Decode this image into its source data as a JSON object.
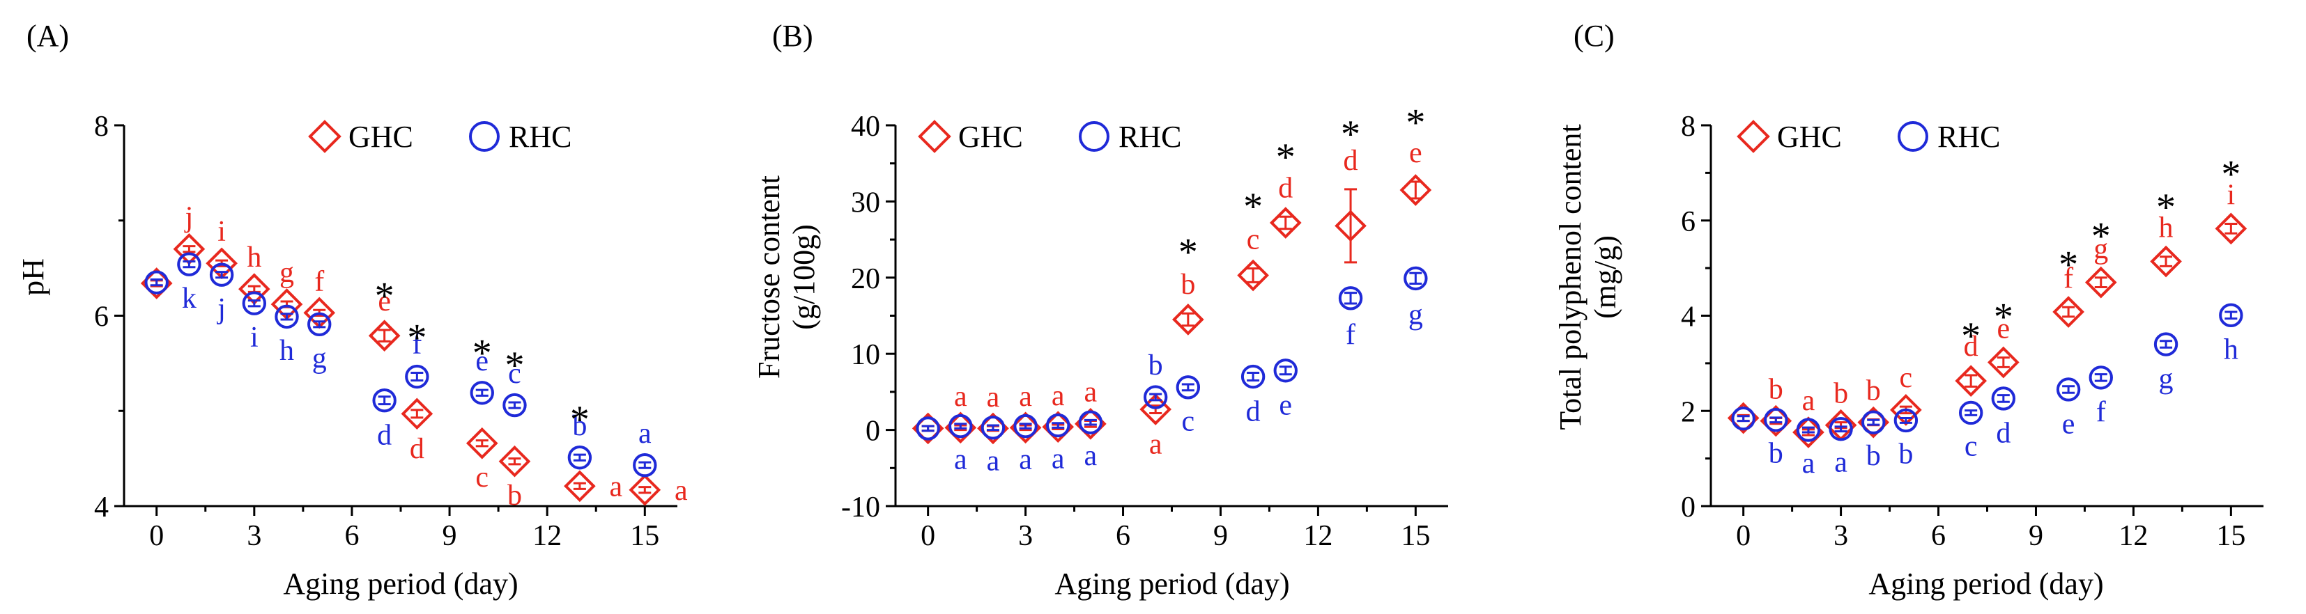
{
  "colors": {
    "ghc": "#e8281e",
    "rhc": "#1f2ad8",
    "axis": "#000000",
    "star": "#000000"
  },
  "chart_data": [
    {
      "type": "scatter",
      "panel_label": "(A)",
      "xlabel": "Aging  period (day)",
      "ylabel": [
        "pH"
      ],
      "xlim": [
        -1,
        16
      ],
      "ylim": [
        4,
        8
      ],
      "xticks": [
        0,
        3,
        6,
        9,
        12,
        15
      ],
      "yticks": [
        4,
        6,
        8
      ],
      "x_minor": true,
      "y_minor": true,
      "legend": {
        "position": "top-right",
        "entries": [
          "GHC",
          "RHC"
        ]
      },
      "series": [
        {
          "name": "GHC",
          "marker": "diamond",
          "x": [
            0,
            1,
            2,
            3,
            4,
            5,
            7,
            8,
            10,
            11,
            13,
            15
          ],
          "y": [
            6.34,
            6.7,
            6.55,
            6.28,
            6.12,
            6.03,
            5.79,
            4.97,
            4.66,
            4.47,
            4.21,
            4.17
          ],
          "err": [
            0.03,
            0.03,
            0.03,
            0.03,
            0.03,
            0.03,
            0.06,
            0.04,
            0.03,
            0.03,
            0.03,
            0.03
          ],
          "labels": [
            "",
            "j",
            "i",
            "h",
            "g",
            "f",
            "e",
            "d",
            "c",
            "b",
            "a",
            "a"
          ],
          "label_pos": [
            "",
            "above",
            "above",
            "above",
            "above",
            "above",
            "above",
            "below",
            "below",
            "below",
            "right",
            "right"
          ]
        },
        {
          "name": "RHC",
          "marker": "circle",
          "x": [
            0,
            1,
            2,
            3,
            4,
            5,
            7,
            8,
            10,
            11,
            13,
            15
          ],
          "y": [
            6.35,
            6.54,
            6.43,
            6.13,
            5.99,
            5.91,
            5.11,
            5.36,
            5.19,
            5.06,
            4.51,
            4.43
          ],
          "err": [
            0.03,
            0.03,
            0.03,
            0.03,
            0.03,
            0.03,
            0.04,
            0.04,
            0.03,
            0.03,
            0.03,
            0.03
          ],
          "labels": [
            "",
            "k",
            "j",
            "i",
            "h",
            "g",
            "d",
            "f",
            "e",
            "c",
            "b",
            "a"
          ],
          "label_pos": [
            "",
            "below",
            "below",
            "below",
            "below",
            "below",
            "below",
            "above",
            "above",
            "above",
            "above",
            "above"
          ]
        }
      ],
      "significance": [
        {
          "x": 7,
          "y": 6.22,
          "text": "*"
        },
        {
          "x": 8,
          "y": 5.78,
          "text": "*"
        },
        {
          "x": 10,
          "y": 5.62,
          "text": "*"
        },
        {
          "x": 11,
          "y": 5.49,
          "text": "*"
        },
        {
          "x": 13,
          "y": 4.92,
          "text": "*"
        }
      ]
    },
    {
      "type": "scatter",
      "panel_label": "(B)",
      "xlabel": "Aging  period (day)",
      "ylabel": [
        "Fructose content",
        "(g/100g)"
      ],
      "xlim": [
        -1,
        16
      ],
      "ylim": [
        -10,
        40
      ],
      "xticks": [
        0,
        3,
        6,
        9,
        12,
        15
      ],
      "yticks": [
        -10,
        0,
        10,
        20,
        30,
        40
      ],
      "x_minor": true,
      "y_minor": true,
      "legend": {
        "position": "top-right",
        "entries": [
          "GHC",
          "RHC"
        ]
      },
      "series": [
        {
          "name": "GHC",
          "marker": "diamond",
          "x": [
            0,
            1,
            2,
            3,
            4,
            5,
            7,
            8,
            10,
            11,
            13,
            15
          ],
          "y": [
            0.2,
            0.3,
            0.2,
            0.3,
            0.4,
            0.8,
            2.7,
            14.5,
            20.3,
            27.2,
            26.8,
            31.5
          ],
          "err": [
            0.3,
            0.3,
            0.3,
            0.3,
            0.3,
            0.4,
            0.5,
            0.8,
            0.9,
            0.8,
            4.8,
            1.1
          ],
          "labels": [
            "",
            "a",
            "a",
            "a",
            "a",
            "a",
            "a",
            "b",
            "c",
            "d",
            "d",
            "e"
          ],
          "label_pos": [
            "",
            "above",
            "above",
            "above",
            "above",
            "above",
            "below",
            "above",
            "above",
            "above",
            "above",
            "above"
          ]
        },
        {
          "name": "RHC",
          "marker": "circle",
          "x": [
            0,
            1,
            2,
            3,
            4,
            5,
            7,
            8,
            10,
            11,
            13,
            15
          ],
          "y": [
            0.2,
            0.5,
            0.3,
            0.5,
            0.6,
            1.0,
            4.3,
            5.6,
            7.0,
            7.8,
            17.3,
            19.9
          ],
          "err": [
            0.3,
            0.3,
            0.3,
            0.3,
            0.3,
            0.3,
            0.4,
            0.4,
            0.5,
            0.5,
            0.7,
            0.7
          ],
          "labels": [
            "",
            "a",
            "a",
            "a",
            "a",
            "a",
            "b",
            "c",
            "d",
            "e",
            "f",
            "g"
          ],
          "label_pos": [
            "",
            "below",
            "below",
            "below",
            "below",
            "below",
            "above",
            "below",
            "below",
            "below",
            "below",
            "below"
          ]
        }
      ],
      "significance": [
        {
          "x": 8,
          "y": 23.5,
          "text": "*"
        },
        {
          "x": 10,
          "y": 29.5,
          "text": "*"
        },
        {
          "x": 11,
          "y": 36.0,
          "text": "*"
        },
        {
          "x": 13,
          "y": 39.0,
          "text": "*"
        },
        {
          "x": 15,
          "y": 40.5,
          "text": "*"
        }
      ]
    },
    {
      "type": "scatter",
      "panel_label": "(C)",
      "xlabel": "Aging  period (day)",
      "ylabel": [
        "Total polyphenol  content",
        "(mg/g)"
      ],
      "xlim": [
        -1,
        16
      ],
      "ylim": [
        0,
        8
      ],
      "xticks": [
        0,
        3,
        6,
        9,
        12,
        15
      ],
      "yticks": [
        0,
        2,
        4,
        6,
        8
      ],
      "x_minor": true,
      "y_minor": true,
      "legend": {
        "position": "top-right",
        "entries": [
          "GHC",
          "RHC"
        ]
      },
      "series": [
        {
          "name": "GHC",
          "marker": "diamond",
          "x": [
            0,
            1,
            2,
            3,
            4,
            5,
            7,
            8,
            10,
            11,
            13,
            15
          ],
          "y": [
            1.85,
            1.79,
            1.55,
            1.7,
            1.76,
            2.02,
            2.63,
            3.02,
            4.08,
            4.7,
            5.14,
            5.83
          ],
          "err": [
            0.06,
            0.06,
            0.06,
            0.06,
            0.06,
            0.07,
            0.12,
            0.1,
            0.1,
            0.1,
            0.1,
            0.1
          ],
          "labels": [
            "",
            "b",
            "a",
            "b",
            "b",
            "c",
            "d",
            "e",
            "f",
            "g",
            "h",
            "i"
          ],
          "label_pos": [
            "",
            "above",
            "above",
            "above",
            "above",
            "above",
            "above",
            "above",
            "above",
            "above",
            "above",
            "above"
          ]
        },
        {
          "name": "RHC",
          "marker": "circle",
          "x": [
            0,
            1,
            2,
            3,
            4,
            5,
            7,
            8,
            10,
            11,
            13,
            15
          ],
          "y": [
            1.84,
            1.81,
            1.6,
            1.62,
            1.76,
            1.8,
            1.96,
            2.26,
            2.45,
            2.7,
            3.4,
            4.01
          ],
          "err": [
            0.05,
            0.05,
            0.05,
            0.05,
            0.05,
            0.05,
            0.05,
            0.07,
            0.07,
            0.07,
            0.07,
            0.07
          ],
          "labels": [
            "",
            "b",
            "a",
            "a",
            "b",
            "b",
            "c",
            "d",
            "e",
            "f",
            "g",
            "h"
          ],
          "label_pos": [
            "",
            "below",
            "below",
            "below",
            "below",
            "below",
            "below",
            "below",
            "below",
            "below",
            "below",
            "below"
          ]
        }
      ],
      "significance": [
        {
          "x": 7,
          "y": 3.6,
          "text": "*"
        },
        {
          "x": 8,
          "y": 4.0,
          "text": "*"
        },
        {
          "x": 10,
          "y": 5.1,
          "text": "*"
        },
        {
          "x": 11,
          "y": 5.7,
          "text": "*"
        },
        {
          "x": 13,
          "y": 6.3,
          "text": "*"
        },
        {
          "x": 15,
          "y": 7.0,
          "text": "*"
        }
      ]
    }
  ]
}
